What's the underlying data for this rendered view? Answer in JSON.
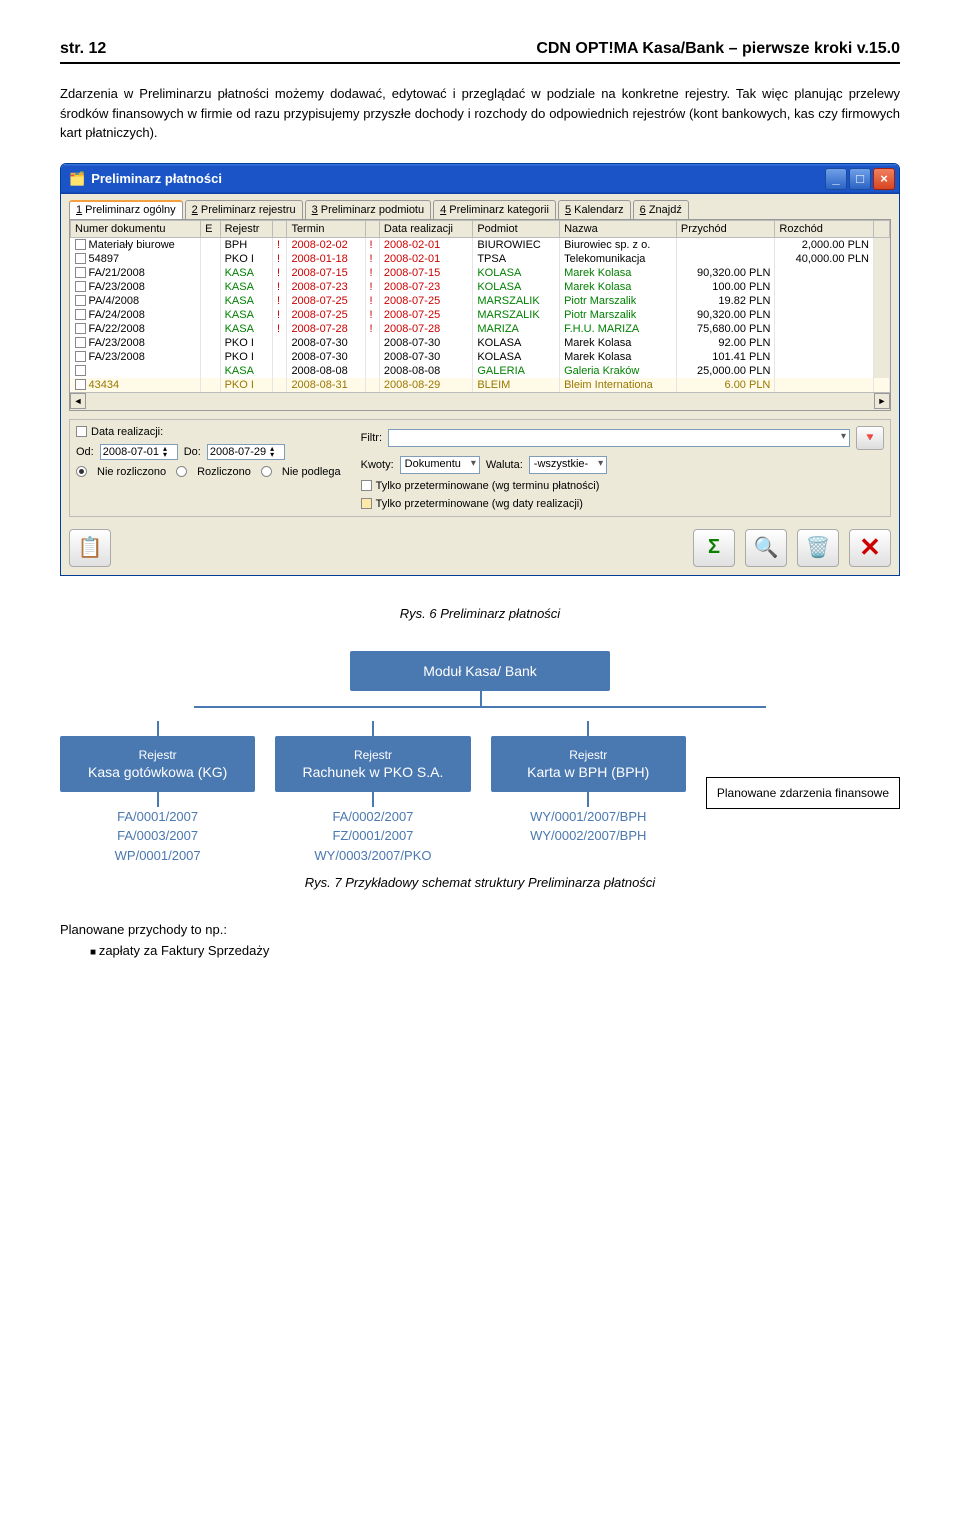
{
  "header": {
    "left": "str. 12",
    "right": "CDN OPT!MA Kasa/Bank – pierwsze kroki v.15.0"
  },
  "paragraph": "Zdarzenia w Preliminarzu płatności możemy dodawać, edytować i przeglądać w podziale na konkretne rejestry. Tak więc planując przelewy środków finansowych w firmie od razu przypisujemy przyszłe dochody i rozchody do odpowiednich rejestrów (kont bankowych, kas czy firmowych kart płatniczych).",
  "window": {
    "title": "Preliminarz płatności",
    "tabs": [
      {
        "n": "1",
        "label": "Preliminarz ogólny",
        "key": "1"
      },
      {
        "n": "2",
        "label": "Preliminarz rejestru",
        "key": "2"
      },
      {
        "n": "3",
        "label": "Preliminarz podmiotu",
        "key": "3"
      },
      {
        "n": "4",
        "label": "Preliminarz kategorii",
        "key": "4"
      },
      {
        "n": "5",
        "label": "Kalendarz",
        "key": "5"
      },
      {
        "n": "6",
        "label": "Znajdź",
        "key": "6"
      }
    ],
    "columns": [
      "Numer dokumentu",
      "E",
      "Rejestr",
      "",
      "Termin",
      "",
      "Data realizacji",
      "Podmiot",
      "Nazwa",
      "Przychód",
      "Rozchód"
    ],
    "rows": [
      {
        "num": "Materiały biurowe",
        "rej": "BPH",
        "rejc": "",
        "ter": "2008-02-02",
        "terc": "r",
        "dr": "2008-02-01",
        "drc": "r",
        "pod": "BIUROWIEC",
        "podc": "",
        "naz": "Biurowiec sp. z o.",
        "nazc": "",
        "prz": "",
        "roz": "2,000.00 PLN"
      },
      {
        "num": "54897",
        "rej": "PKO I",
        "rejc": "",
        "ter": "2008-01-18",
        "terc": "r",
        "dr": "2008-02-01",
        "drc": "r",
        "pod": "TPSA",
        "podc": "",
        "naz": "Telekomunikacja",
        "nazc": "",
        "prz": "",
        "roz": "40,000.00 PLN"
      },
      {
        "num": "FA/21/2008",
        "rej": "KASA",
        "rejc": "g",
        "ter": "2008-07-15",
        "terc": "r",
        "dr": "2008-07-15",
        "drc": "r",
        "pod": "KOLASA",
        "podc": "g",
        "naz": "Marek Kolasa",
        "nazc": "g",
        "prz": "90,320.00 PLN",
        "roz": ""
      },
      {
        "num": "FA/23/2008",
        "rej": "KASA",
        "rejc": "g",
        "ter": "2008-07-23",
        "terc": "r",
        "dr": "2008-07-23",
        "drc": "r",
        "pod": "KOLASA",
        "podc": "g",
        "naz": "Marek Kolasa",
        "nazc": "g",
        "prz": "100.00 PLN",
        "roz": ""
      },
      {
        "num": "PA/4/2008",
        "rej": "KASA",
        "rejc": "g",
        "ter": "2008-07-25",
        "terc": "r",
        "dr": "2008-07-25",
        "drc": "r",
        "pod": "MARSZALIK",
        "podc": "g",
        "naz": "Piotr Marszalik",
        "nazc": "g",
        "prz": "19.82 PLN",
        "roz": ""
      },
      {
        "num": "FA/24/2008",
        "rej": "KASA",
        "rejc": "g",
        "ter": "2008-07-25",
        "terc": "r",
        "dr": "2008-07-25",
        "drc": "r",
        "pod": "MARSZALIK",
        "podc": "g",
        "naz": "Piotr Marszalik",
        "nazc": "g",
        "prz": "90,320.00 PLN",
        "roz": ""
      },
      {
        "num": "FA/22/2008",
        "rej": "KASA",
        "rejc": "g",
        "ter": "2008-07-28",
        "terc": "r",
        "dr": "2008-07-28",
        "drc": "r",
        "pod": "MARIZA",
        "podc": "g",
        "naz": "F.H.U. MARIZA",
        "nazc": "g",
        "prz": "75,680.00 PLN",
        "roz": ""
      },
      {
        "num": "FA/23/2008",
        "rej": "PKO I",
        "rejc": "",
        "ter": "2008-07-30",
        "terc": "",
        "dr": "2008-07-30",
        "drc": "",
        "pod": "KOLASA",
        "podc": "",
        "naz": "Marek Kolasa",
        "nazc": "",
        "prz": "92.00 PLN",
        "roz": ""
      },
      {
        "num": "FA/23/2008",
        "rej": "PKO I",
        "rejc": "",
        "ter": "2008-07-30",
        "terc": "",
        "dr": "2008-07-30",
        "drc": "",
        "pod": "KOLASA",
        "podc": "",
        "naz": "Marek Kolasa",
        "nazc": "",
        "prz": "101.41 PLN",
        "roz": ""
      },
      {
        "num": "",
        "rej": "KASA",
        "rejc": "g",
        "ter": "2008-08-08",
        "terc": "",
        "dr": "2008-08-08",
        "drc": "",
        "pod": "GALERIA",
        "podc": "g",
        "naz": "Galeria Kraków",
        "nazc": "g",
        "prz": "25,000.00 PLN",
        "roz": ""
      }
    ],
    "newrow": {
      "num": "43434",
      "rej": "PKO I",
      "ter": "2008-08-31",
      "dr": "2008-08-29",
      "pod": "BLEIM",
      "naz": "Bleim Internationa",
      "prz": "6.00 PLN"
    },
    "filters": {
      "data_realizacji": "Data realizacji:",
      "od": "Od:",
      "od_v": "2008-07-01",
      "do": "Do:",
      "do_v": "2008-07-29",
      "nie_rozliczono": "Nie rozliczono",
      "rozliczono": "Rozliczono",
      "nie_podlega": "Nie podlega",
      "filtr": "Filtr:",
      "kwoty": "Kwoty:",
      "kwoty_v": "Dokumentu",
      "waluta": "Waluta:",
      "waluta_v": "-wszystkie-",
      "term1": "Tylko przeterminowane (wg terminu płatności)",
      "term2": "Tylko przeterminowane (wg daty realizacji)"
    }
  },
  "caption1": "Rys. 6 Preliminarz płatności",
  "diagram": {
    "root": "Moduł Kasa/ Bank",
    "reg_small": "Rejestr",
    "n1": "Kasa gotówkowa (KG)",
    "n2": "Rachunek w PKO S.A.",
    "n3": "Karta w BPH (BPH)",
    "l1": [
      "FA/0001/2007",
      "FA/0003/2007",
      "WP/0001/2007"
    ],
    "l2": [
      "FA/0002/2007",
      "FZ/0001/2007",
      "WY/0003/2007/PKO"
    ],
    "l3": [
      "WY/0001/2007/BPH",
      "WY/0002/2007/BPH"
    ],
    "side": "Planowane zdarzenia finansowe"
  },
  "caption2": "Rys. 7 Przykładowy schemat struktury Preliminarza płatności",
  "footer": {
    "line1": "Planowane przychody to np.:",
    "bullet": "zapłaty za Faktury Sprzedaży"
  }
}
